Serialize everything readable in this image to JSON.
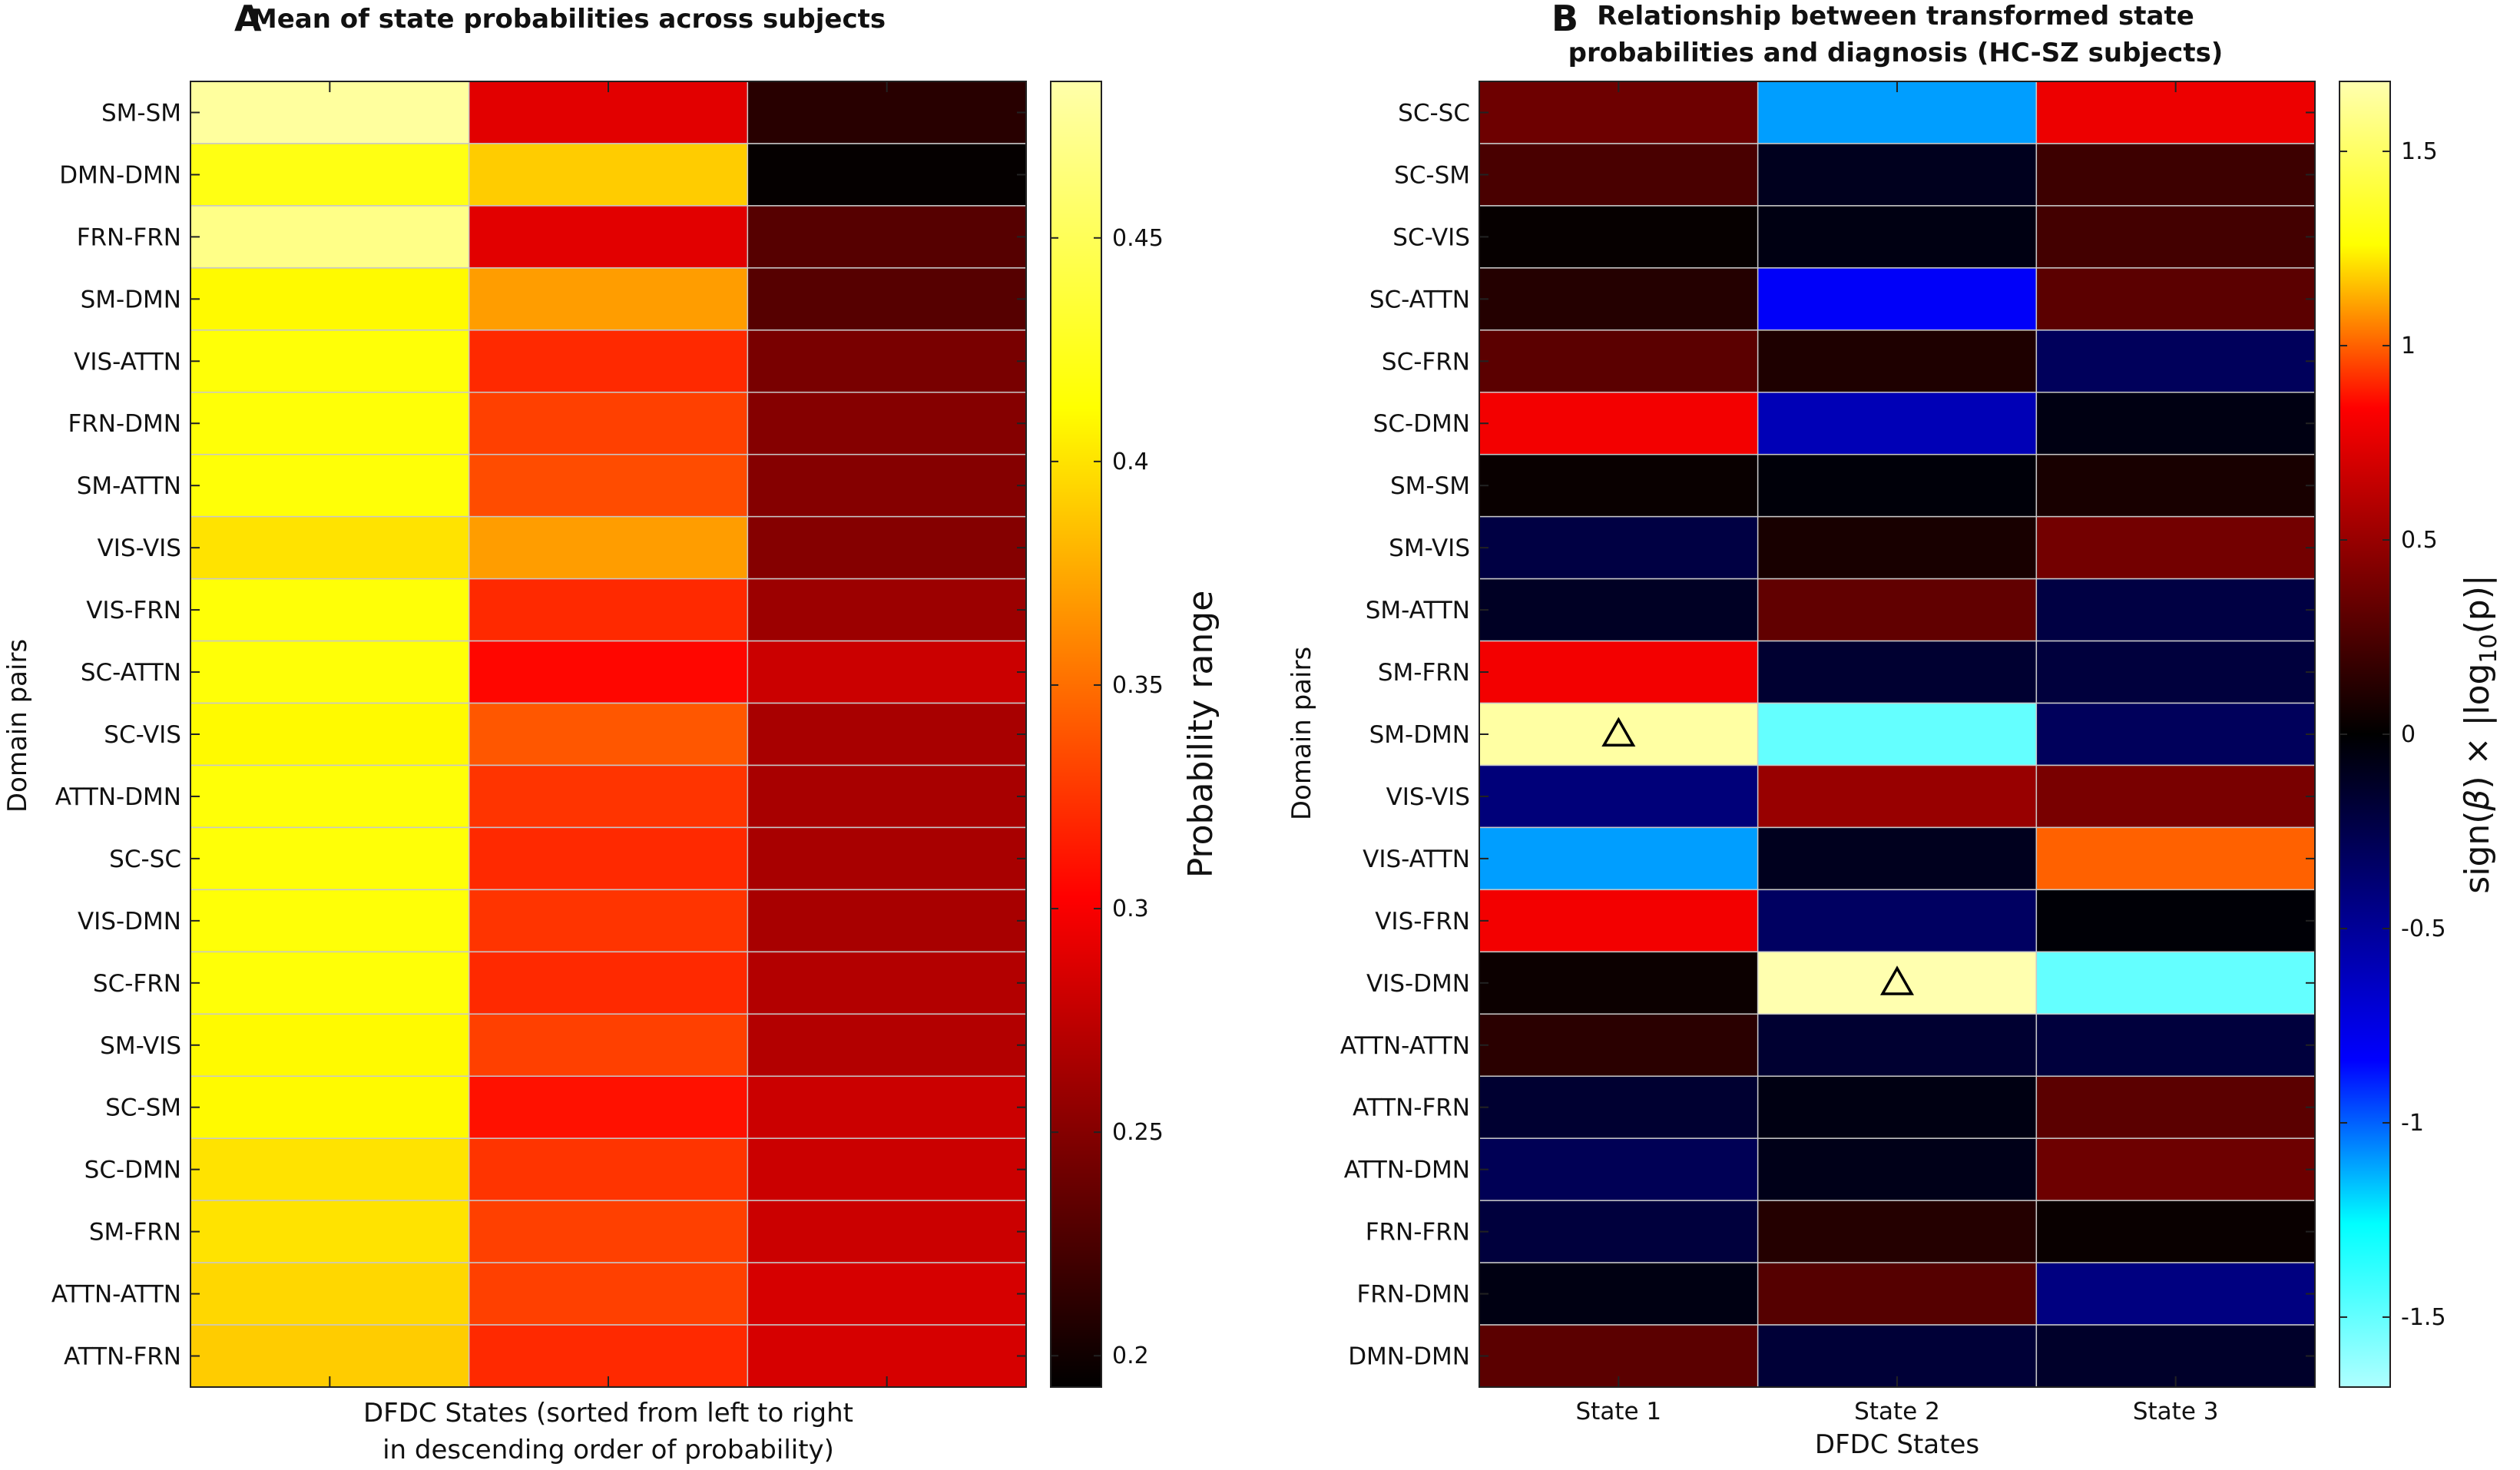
{
  "chart_data": [
    {
      "panel_label": "A",
      "type": "heatmap",
      "title": "Mean of state probabilities across subjects",
      "xlabel_lines": [
        "DFDC States (sorted from left to right",
        "in descending order of probability)"
      ],
      "ylabel": "Domain pairs",
      "colorbar_label": "Probability range",
      "colormap": "hot",
      "clim": [
        0.193,
        0.485
      ],
      "colorbar_ticks": [
        0.2,
        0.25,
        0.3,
        0.35,
        0.4,
        0.45
      ],
      "colorbar_tick_labels": [
        "0.2",
        "0.25",
        "0.3",
        "0.35",
        "0.4",
        "0.45"
      ],
      "x_tick_labels": [
        "",
        "",
        ""
      ],
      "rows": [
        "SM-SM",
        "DMN-DMN",
        "FRN-FRN",
        "SM-DMN",
        "VIS-ATTN",
        "FRN-DMN",
        "SM-ATTN",
        "VIS-VIS",
        "VIS-FRN",
        "SC-ATTN",
        "SC-VIS",
        "ATTN-DMN",
        "SC-SC",
        "VIS-DMN",
        "SC-FRN",
        "SM-VIS",
        "SC-SM",
        "SC-DMN",
        "SM-FRN",
        "ATTN-ATTN",
        "ATTN-FRN"
      ],
      "values": [
        [
          0.48,
          0.29,
          0.21
        ],
        [
          0.42,
          0.39,
          0.195
        ],
        [
          0.47,
          0.29,
          0.23
        ],
        [
          0.41,
          0.37,
          0.23
        ],
        [
          0.415,
          0.32,
          0.245
        ],
        [
          0.415,
          0.33,
          0.25
        ],
        [
          0.415,
          0.335,
          0.25
        ],
        [
          0.4,
          0.37,
          0.25
        ],
        [
          0.415,
          0.32,
          0.26
        ],
        [
          0.415,
          0.305,
          0.28
        ],
        [
          0.41,
          0.34,
          0.265
        ],
        [
          0.415,
          0.325,
          0.265
        ],
        [
          0.415,
          0.32,
          0.265
        ],
        [
          0.415,
          0.325,
          0.265
        ],
        [
          0.415,
          0.32,
          0.27
        ],
        [
          0.41,
          0.33,
          0.27
        ],
        [
          0.41,
          0.31,
          0.28
        ],
        [
          0.4,
          0.325,
          0.28
        ],
        [
          0.4,
          0.33,
          0.28
        ],
        [
          0.395,
          0.33,
          0.285
        ],
        [
          0.39,
          0.32,
          0.285
        ]
      ],
      "markers": []
    },
    {
      "panel_label": "B",
      "type": "heatmap",
      "title_lines": [
        "Relationship between transformed state",
        "probabilities and diagnosis (HC-SZ subjects)"
      ],
      "xlabel_lines": [
        "DFDC States"
      ],
      "ylabel": "Domain pairs",
      "colorbar_label": "sign(β) × |log10(p)|",
      "colorbar_label_parts": [
        "sign(",
        "β",
        ") × |log",
        "10",
        "(p)|"
      ],
      "colormap": "hot-cold",
      "clim": [
        -1.68,
        1.68
      ],
      "colorbar_ticks": [
        -1.5,
        -1,
        -0.5,
        0,
        0.5,
        1,
        1.5
      ],
      "colorbar_tick_labels": [
        "-1.5",
        "-1",
        "-0.5",
        "0",
        "0.5",
        "1",
        "1.5"
      ],
      "x_tick_labels": [
        "State 1",
        "State 2",
        "State 3"
      ],
      "rows": [
        "SC-SC",
        "SC-SM",
        "SC-VIS",
        "SC-ATTN",
        "SC-FRN",
        "SC-DMN",
        "SM-SM",
        "SM-VIS",
        "SM-ATTN",
        "SM-FRN",
        "SM-DMN",
        "VIS-VIS",
        "VIS-ATTN",
        "VIS-FRN",
        "VIS-DMN",
        "ATTN-ATTN",
        "ATTN-FRN",
        "ATTN-DMN",
        "FRN-FRN",
        "FRN-DMN",
        "DMN-DMN"
      ],
      "values": [
        [
          0.36,
          -1.1,
          0.78
        ],
        [
          0.24,
          -0.1,
          0.2
        ],
        [
          0.02,
          -0.06,
          0.22
        ],
        [
          0.12,
          -0.82,
          0.3
        ],
        [
          0.3,
          0.1,
          -0.3
        ],
        [
          0.8,
          -0.6,
          -0.06
        ],
        [
          0.03,
          -0.03,
          0.08
        ],
        [
          -0.22,
          0.08,
          0.38
        ],
        [
          -0.12,
          0.32,
          -0.22
        ],
        [
          0.8,
          -0.16,
          -0.2
        ],
        [
          1.65,
          -1.5,
          -0.3
        ],
        [
          -0.4,
          0.5,
          0.4
        ],
        [
          -1.1,
          -0.1,
          1.0
        ],
        [
          0.8,
          -0.32,
          -0.02
        ],
        [
          0.04,
          1.7,
          -1.5
        ],
        [
          0.14,
          -0.16,
          -0.2
        ],
        [
          -0.16,
          -0.06,
          0.3
        ],
        [
          -0.28,
          -0.08,
          0.36
        ],
        [
          -0.2,
          0.12,
          0.03
        ],
        [
          -0.06,
          0.28,
          -0.42
        ],
        [
          0.3,
          -0.18,
          -0.14
        ]
      ],
      "markers": [
        {
          "row": 10,
          "col": 0,
          "symbol": "triangle"
        },
        {
          "row": 14,
          "col": 1,
          "symbol": "triangle"
        }
      ]
    }
  ]
}
